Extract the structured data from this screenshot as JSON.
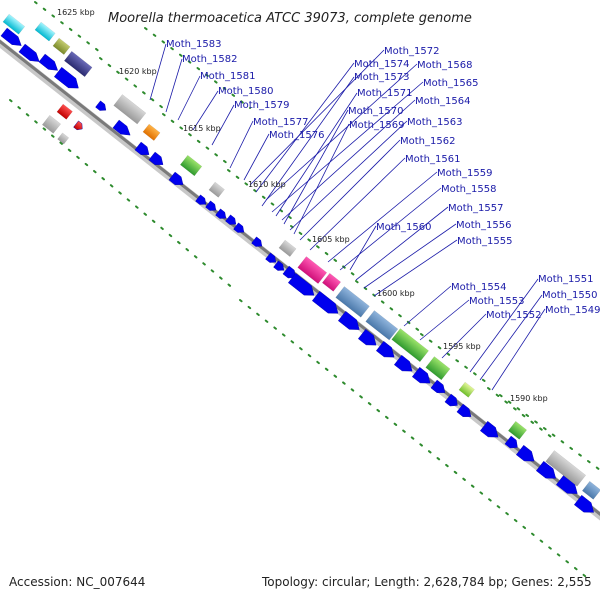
{
  "header": {
    "organism": "Moorella thermoacetica ATCC 39073",
    "suffix": ", complete genome"
  },
  "footer": {
    "accession": "Accession: NC_007644",
    "stats": "Topology: circular; Length: 2,628,784 bp; Genes: 2,555"
  },
  "colors": {
    "backbone": "#808080",
    "gene_blue": "#0000ee",
    "label_blue": "#1a1aa8",
    "tick_green": "#2e8b2e",
    "highlight_pink": "#ff1493",
    "highlight_steel": "#5f8fc0",
    "highlight_green": "#44b844",
    "highlight_orange": "#ff8c00",
    "highlight_cyan": "#00d0e0",
    "highlight_navy": "#3a3a8a",
    "highlight_red": "#ee0000",
    "highlight_gray": "#b0b0b0"
  },
  "kbp_ticks": [
    {
      "label": "1625 kbp"
    },
    {
      "label": "1620 kbp"
    },
    {
      "label": "1615 kbp"
    },
    {
      "label": "1610 kbp"
    },
    {
      "label": "1605 kbp"
    },
    {
      "label": "1600 kbp"
    },
    {
      "label": "1595 kbp"
    },
    {
      "label": "1590 kbp"
    }
  ],
  "gene_labels": [
    {
      "name": "Moth_1583"
    },
    {
      "name": "Moth_1582"
    },
    {
      "name": "Moth_1581"
    },
    {
      "name": "Moth_1580"
    },
    {
      "name": "Moth_1579"
    },
    {
      "name": "Moth_1577"
    },
    {
      "name": "Moth_1576"
    },
    {
      "name": "Moth_1572"
    },
    {
      "name": "Moth_1574"
    },
    {
      "name": "Moth_1568"
    },
    {
      "name": "Moth_1573"
    },
    {
      "name": "Moth_1565"
    },
    {
      "name": "Moth_1571"
    },
    {
      "name": "Moth_1564"
    },
    {
      "name": "Moth_1570"
    },
    {
      "name": "Moth_1563"
    },
    {
      "name": "Moth_1569"
    },
    {
      "name": "Moth_1562"
    },
    {
      "name": "Moth_1561"
    },
    {
      "name": "Moth_1559"
    },
    {
      "name": "Moth_1558"
    },
    {
      "name": "Moth_1557"
    },
    {
      "name": "Moth_1556"
    },
    {
      "name": "Moth_1560"
    },
    {
      "name": "Moth_1555"
    },
    {
      "name": "Moth_1554"
    },
    {
      "name": "Moth_1553"
    },
    {
      "name": "Moth_1552"
    },
    {
      "name": "Moth_1551"
    },
    {
      "name": "Moth_1550"
    },
    {
      "name": "Moth_1549"
    }
  ]
}
